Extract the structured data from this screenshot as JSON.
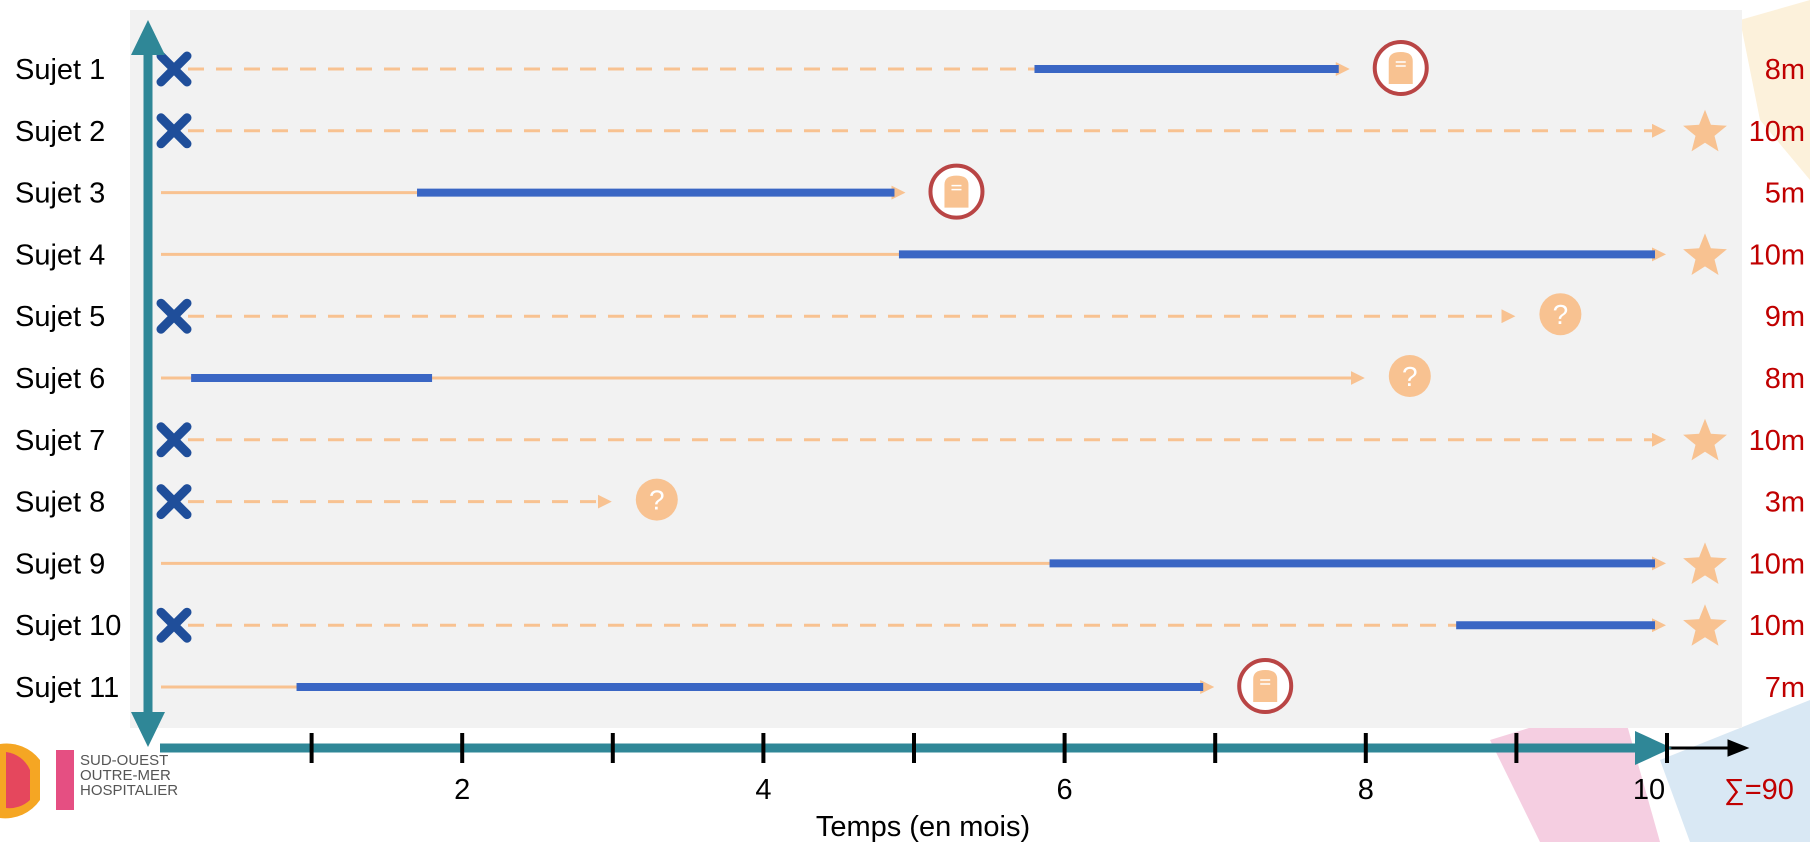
{
  "chart_data": {
    "type": "timeline",
    "xlabel": "Temps (en mois)",
    "xlim": [
      0,
      10
    ],
    "x_ticks": [
      1,
      2,
      3,
      4,
      5,
      6,
      7,
      8,
      9,
      10
    ],
    "x_tick_labels": [
      {
        "x": 2,
        "label": "2"
      },
      {
        "x": 4,
        "label": "4"
      },
      {
        "x": 6,
        "label": "6"
      },
      {
        "x": 8,
        "label": "8"
      },
      {
        "x": 10,
        "label": "10"
      }
    ],
    "subjects": [
      {
        "label": "Sujet 1",
        "cross": true,
        "dashed": true,
        "end": 7.9,
        "exposure": [
          5.8,
          7.9
        ],
        "outcome": "tombstone",
        "total": "8m"
      },
      {
        "label": "Sujet 2",
        "cross": true,
        "dashed": true,
        "end": 10,
        "exposure": null,
        "outcome": "star",
        "total": "10m"
      },
      {
        "label": "Sujet 3",
        "cross": false,
        "dashed": false,
        "end": 4.95,
        "exposure": [
          1.7,
          4.95
        ],
        "outcome": "tombstone",
        "total": "5m"
      },
      {
        "label": "Sujet 4",
        "cross": false,
        "dashed": false,
        "end": 10,
        "exposure": [
          4.9,
          10
        ],
        "outcome": "star",
        "total": "10m"
      },
      {
        "label": "Sujet 5",
        "cross": true,
        "dashed": true,
        "end": 9,
        "exposure": null,
        "outcome": "question",
        "total": "9m"
      },
      {
        "label": "Sujet 6",
        "cross": false,
        "dashed": false,
        "end": 8,
        "exposure": [
          0.2,
          1.8
        ],
        "outcome": "question",
        "total": "8m"
      },
      {
        "label": "Sujet 7",
        "cross": true,
        "dashed": true,
        "end": 10,
        "exposure": null,
        "outcome": "star",
        "total": "10m"
      },
      {
        "label": "Sujet 8",
        "cross": true,
        "dashed": true,
        "end": 3,
        "exposure": null,
        "outcome": "question",
        "total": "3m"
      },
      {
        "label": "Sujet 9",
        "cross": false,
        "dashed": false,
        "end": 10,
        "exposure": [
          5.9,
          10
        ],
        "outcome": "star",
        "total": "10m"
      },
      {
        "label": "Sujet 10",
        "cross": true,
        "dashed": true,
        "end": 10,
        "exposure": [
          8.6,
          10
        ],
        "outcome": "star",
        "total": "10m"
      },
      {
        "label": "Sujet 11",
        "cross": false,
        "dashed": false,
        "end": 7,
        "exposure": [
          0.9,
          7
        ],
        "outcome": "tombstone",
        "total": "7m"
      }
    ],
    "sum_label": "∑=90",
    "colors": {
      "follow_up": "#f8c291",
      "exposure": "#3a66c4",
      "axis": "#2f8797",
      "cross": "#1f4e9a",
      "tombstone_ring": "#b94545",
      "totals": "#c00000",
      "panel": "#f2f2f2"
    }
  },
  "logo": {
    "lines": [
      "SUD-OUEST",
      "OUTRE-MER",
      "HOSPITALIER"
    ]
  }
}
